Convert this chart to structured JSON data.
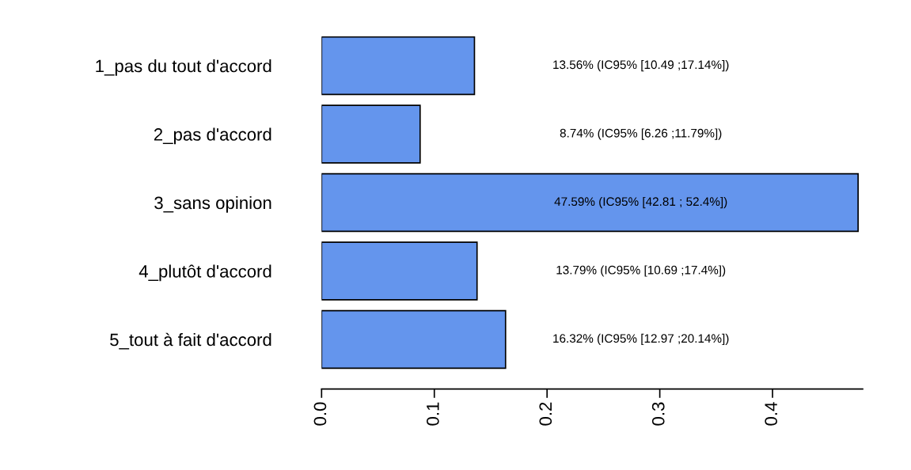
{
  "chart_data": {
    "type": "bar",
    "orientation": "horizontal",
    "categories": [
      "1_pas du tout d'accord",
      "2_pas d'accord",
      "3_sans opinion",
      "4_plutôt d'accord",
      "5_tout à fait d'accord"
    ],
    "values": [
      0.1356,
      0.0874,
      0.4759,
      0.1379,
      0.1632
    ],
    "value_labels": [
      "13.56% (IC95% [10.49 ;17.14%])",
      "8.74% (IC95% [6.26 ;11.79%])",
      "47.59% (IC95% [42.81 ; 52.4%])",
      "13.79% (IC95% [10.69 ;17.4%])",
      "16.32% (IC95% [12.97 ;20.14%])"
    ],
    "color": "#6495ed",
    "xlim": [
      0,
      0.48
    ],
    "xticks": [
      {
        "value": 0,
        "label": "0.0"
      },
      {
        "value": 0.1,
        "label": "0.1"
      },
      {
        "value": 0.2,
        "label": "0.2"
      },
      {
        "value": 0.3,
        "label": "0.3"
      },
      {
        "value": 0.4,
        "label": "0.4"
      }
    ],
    "grid": false,
    "legend": false
  }
}
